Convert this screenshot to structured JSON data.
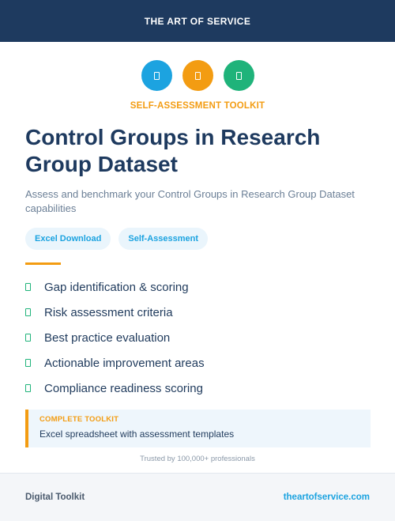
{
  "header": {
    "brand": "THE ART OF SERVICE",
    "background": "#1e3a5f"
  },
  "icons": [
    {
      "name": "document-icon",
      "color": "#1ca3e0"
    },
    {
      "name": "document-icon",
      "color": "#f39c12"
    },
    {
      "name": "document-icon",
      "color": "#1fb37a"
    }
  ],
  "kicker": "SELF-ASSESSMENT TOOLKIT",
  "title": "Control Groups in Research Group Dataset",
  "subtitle": "Assess and benchmark your Control Groups in Research Group Dataset capabilities",
  "badges": [
    "Excel Download",
    "Self-Assessment"
  ],
  "features": [
    "Gap identification & scoring",
    "Risk assessment criteria",
    "Best practice evaluation",
    "Actionable improvement areas",
    "Compliance readiness scoring"
  ],
  "toolkit_box": {
    "label": "COMPLETE TOOLKIT",
    "text": "Excel spreadsheet with assessment templates"
  },
  "trusted": "Trusted by 100,000+ professionals",
  "footer": {
    "left": "Digital Toolkit",
    "right": "theartofservice.com"
  },
  "colors": {
    "accent_orange": "#f39c12",
    "accent_blue": "#1ca3e0",
    "accent_green": "#1fb37a",
    "navy": "#1e3a5f"
  }
}
